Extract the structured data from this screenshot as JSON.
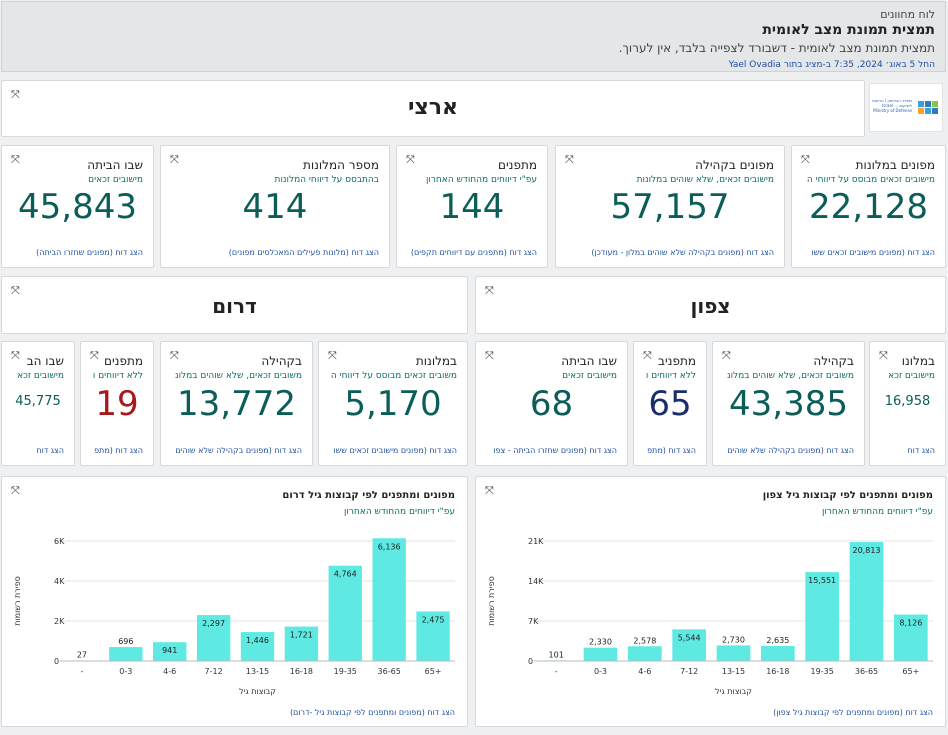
{
  "header": {
    "dashboards_label": "לוח מחוונים",
    "title": "תמצית תמונת מצב לאומית",
    "subtitle": "תמצית תמונת מצב לאומית - דשבורד לצפייה בלבד, אין לערוך.",
    "meta": "החל 5 באוג׳ 2024, 7:35 ב-מציג בתור Yael Ovadia"
  },
  "national": {
    "title": "ארצי"
  },
  "kpis_national": [
    {
      "title": "מפונים במלונות",
      "subtitle": "מישובים זכאים מבוסס על דיווחי ה",
      "value": "22,128",
      "footer": "הצג דוח (מפונים מישובים זכאים ששו"
    },
    {
      "title": "מפונים בקהילה",
      "subtitle": "מישובים זכאים, שלא שוהים במלונות",
      "value": "57,157",
      "footer": "הצג דוח (מפונים בקהילה שלא שוהים במלון - מעודכן)"
    },
    {
      "title": "מתפנים",
      "subtitle": "עפ\"י דיווחים מהחודש האחרון",
      "value": "144",
      "footer": "הצג דוח (מתפנים עם דיווחים תקפים)"
    },
    {
      "title": "מספר המלונות",
      "subtitle": "בהתבסס על דיווחי המלונות",
      "value": "414",
      "footer": "הצג דוח (מלונות פעילים המאכלסים מפונים)"
    },
    {
      "title": "שבו הביתה",
      "subtitle": "מישובים זכאים",
      "value": "45,843",
      "footer": "הצג דוח (מפונים שחזרו הביתה)"
    }
  ],
  "north": {
    "title": "צפון"
  },
  "south": {
    "title": "דרום"
  },
  "kpis_north": [
    {
      "title": "במלונו",
      "subtitle": "מישובים זכא",
      "value": "16,958",
      "footer": "הצג דוח"
    },
    {
      "title": "בקהילה",
      "subtitle": "משובים זכאים, שלא שוהים במלונ",
      "value": "43,385",
      "footer": "הצג דוח (מפונים בקהילה שלא שוהים"
    },
    {
      "title": "מתפניב",
      "subtitle": "ללא דיווחים ו",
      "value": "65",
      "footer": "הצג דוח (מתפ"
    },
    {
      "title": "שבו הביתה",
      "subtitle": "מישובים זכאים",
      "value": "68",
      "footer": "הצג דוח (מפונים שחזרו הביתה - צפו"
    }
  ],
  "kpis_south": [
    {
      "title": "במלונות",
      "subtitle": "משובים זכאים מבוסס על דיווחי ה",
      "value": "5,170",
      "footer": "הצג דוח (מפונים מישובים זכאים ששו"
    },
    {
      "title": "בקהילה",
      "subtitle": "משובים זכאים, שלא שוהים במלונ",
      "value": "13,772",
      "footer": "הצג דוח (מפונים בקהילה שלא שוהים"
    },
    {
      "title": "מתפנים",
      "subtitle": "ללא דיווחים ו",
      "value": "19",
      "footer": "הצג דוח (מתפ"
    },
    {
      "title": "שבו הב",
      "subtitle": "מישובים זכא",
      "value": "45,775",
      "footer": "הצג דוח"
    }
  ],
  "colors": {
    "value": "#0b5e57",
    "value_alert": "#a8191b",
    "value_dark": "#1a2e6b",
    "bar": "#5eeae2",
    "link": "#1f4fa3",
    "subtitle": "#0e6e67"
  },
  "icons": {
    "drag": "drag-handle-icon",
    "logo": "ministry-logo"
  },
  "logo_text": "משרד הביטחון / הרשות לשיקום ... Israel Ministry of Defense",
  "chart_data": [
    {
      "type": "bar",
      "title": "מפונים ומתפנים לפי קבוצות גיל צפון",
      "subtitle": "עפ\"י דיווחים מהחודש האחרון",
      "xlabel": "קבוצות גיל",
      "ylabel": "ספירת רשומות",
      "categories": [
        "-",
        "0-3",
        "4-6",
        "7-12",
        "13-15",
        "16-18",
        "19-35",
        "36-65",
        "+65"
      ],
      "values": [
        101,
        2330,
        2578,
        5544,
        2730,
        2635,
        15551,
        20813,
        8126
      ],
      "ylim": [
        0,
        21000
      ],
      "yticks": [
        0,
        7000,
        14000,
        21000
      ],
      "ytick_labels": [
        "0",
        "7K",
        "14K",
        "21K"
      ],
      "grid": true,
      "footer": "הצג דוח (מפונים ומתפנים לפי קבוצות גיל צפון)"
    },
    {
      "type": "bar",
      "title": "מפונים ומתפנים לפי קבוצות גיל דרום",
      "subtitle": "עפ\"י דיווחים מהחודש האחרון",
      "xlabel": "קבוצות גיל",
      "ylabel": "ספירת רשומות",
      "categories": [
        "-",
        "0-3",
        "4-6",
        "7-12",
        "13-15",
        "16-18",
        "19-35",
        "36-65",
        "+65"
      ],
      "values": [
        27,
        696,
        941,
        2297,
        1446,
        1721,
        4764,
        6136,
        2475
      ],
      "ylim": [
        0,
        6000
      ],
      "yticks": [
        0,
        2000,
        4000,
        6000
      ],
      "ytick_labels": [
        "0",
        "2K",
        "4K",
        "6K"
      ],
      "grid": true,
      "footer": "הצג דוח (מפונים ומתפנים לפי קבוצות גיל -דרום)"
    }
  ]
}
